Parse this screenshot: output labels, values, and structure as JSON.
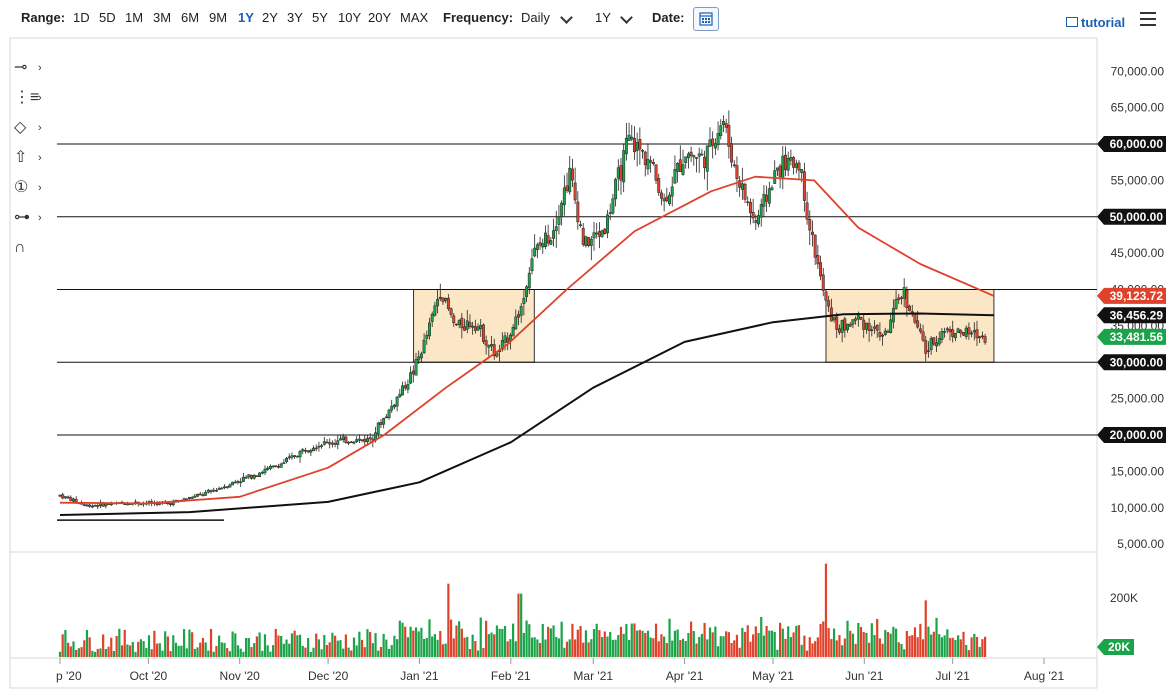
{
  "toolbar": {
    "range_label": "Range:",
    "ranges": [
      "1D",
      "5D",
      "1M",
      "3M",
      "6M",
      "9M",
      "1Y",
      "2Y",
      "3Y",
      "5Y",
      "10Y",
      "20Y",
      "MAX"
    ],
    "active_range": "1Y",
    "frequency_label": "Frequency:",
    "frequency_value": "Daily",
    "period_value": "1Y",
    "date_label": "Date:",
    "tutorial_label": "tutorial"
  },
  "tools": [
    {
      "name": "crosshair-tool",
      "glyph": "⊸"
    },
    {
      "name": "trend-line-tool",
      "glyph": "⋮≡"
    },
    {
      "name": "shape-tool",
      "glyph": "◇"
    },
    {
      "name": "arrow-tool",
      "glyph": "⇧"
    },
    {
      "name": "annotation-tool",
      "glyph": "①"
    },
    {
      "name": "fibonacci-tool",
      "glyph": "⊶"
    },
    {
      "name": "magnet-tool",
      "glyph": "∩"
    }
  ],
  "colors": {
    "up": "#1ba34a",
    "down": "#e0412a",
    "sma50": "#e0412a",
    "sma200": "#111111",
    "box_fill": "#fbe6c6",
    "box_stroke": "#333333"
  },
  "chart_data": {
    "type": "candlestick",
    "price_ticks": [
      "70,000.00",
      "65,000.00",
      "60,000.00",
      "55,000.00",
      "50,000.00",
      "45,000.00",
      "40,000.00",
      "35,000.00",
      "30,000.00",
      "25,000.00",
      "20,000.00",
      "15,000.00",
      "10,000.00",
      "5,000.00"
    ],
    "volume_ticks": [
      "200K",
      "20K"
    ],
    "x_labels": [
      "p '20",
      "Oct '20",
      "Nov '20",
      "Dec '20",
      "Jan '21",
      "Feb '21",
      "Mar '21",
      "Apr '21",
      "May '21",
      "Jun '21",
      "Jul '21",
      "Aug '21"
    ],
    "horizontal_levels": [
      60000,
      50000,
      40000,
      30000,
      20000
    ],
    "level_tags": [
      {
        "text": "60,000.00",
        "value": 60000,
        "style": "black"
      },
      {
        "text": "50,000.00",
        "value": 50000,
        "style": "black"
      },
      {
        "text": "39,123.72",
        "value": 39123.72,
        "style": "red"
      },
      {
        "text": "36,456.29",
        "value": 36456.29,
        "style": "black"
      },
      {
        "text": "33,481.56",
        "value": 33481.56,
        "style": "green"
      },
      {
        "text": "30,000.00",
        "value": 30000,
        "style": "black"
      },
      {
        "text": "20,000.00",
        "value": 20000,
        "style": "black"
      }
    ],
    "volume_tag": {
      "text": "20K",
      "style": "green"
    },
    "support_line": {
      "value": 8300
    },
    "range_boxes": [
      {
        "x0": "2020-12-30",
        "x1": "2021-02-09",
        "y0": 30000,
        "y1": 40000
      },
      {
        "x0": "2021-05-19",
        "x1": "2021-07-15",
        "y0": 30000,
        "y1": 40000
      }
    ],
    "close_path": [
      [
        "2020-09-01",
        11700
      ],
      [
        "2020-09-10",
        10300
      ],
      [
        "2020-09-25",
        10700
      ],
      [
        "2020-10-08",
        10600
      ],
      [
        "2020-10-20",
        11900
      ],
      [
        "2020-11-01",
        13800
      ],
      [
        "2020-11-15",
        16000
      ],
      [
        "2020-11-25",
        18500
      ],
      [
        "2020-12-05",
        19200
      ],
      [
        "2020-12-15",
        19400
      ],
      [
        "2020-12-22",
        23500
      ],
      [
        "2020-12-30",
        28800
      ],
      [
        "2021-01-03",
        33000
      ],
      [
        "2021-01-08",
        40000
      ],
      [
        "2021-01-13",
        35000
      ],
      [
        "2021-01-20",
        35500
      ],
      [
        "2021-01-27",
        30800
      ],
      [
        "2021-01-31",
        33500
      ],
      [
        "2021-02-05",
        38000
      ],
      [
        "2021-02-08",
        44500
      ],
      [
        "2021-02-15",
        48000
      ],
      [
        "2021-02-21",
        56000
      ],
      [
        "2021-02-26",
        46000
      ],
      [
        "2021-03-05",
        48500
      ],
      [
        "2021-03-13",
        60500
      ],
      [
        "2021-03-20",
        58000
      ],
      [
        "2021-03-25",
        52000
      ],
      [
        "2021-04-01",
        58800
      ],
      [
        "2021-04-08",
        58000
      ],
      [
        "2021-04-14",
        63500
      ],
      [
        "2021-04-18",
        56500
      ],
      [
        "2021-04-25",
        49000
      ],
      [
        "2021-05-03",
        57000
      ],
      [
        "2021-05-10",
        57500
      ],
      [
        "2021-05-13",
        49500
      ],
      [
        "2021-05-19",
        38000
      ],
      [
        "2021-05-23",
        34500
      ],
      [
        "2021-05-30",
        36000
      ],
      [
        "2021-06-08",
        33500
      ],
      [
        "2021-06-14",
        40000
      ],
      [
        "2021-06-22",
        31500
      ],
      [
        "2021-06-28",
        34500
      ],
      [
        "2021-07-05",
        34000
      ],
      [
        "2021-07-12",
        33481
      ]
    ],
    "sma50": [
      [
        "2020-09-01",
        10700
      ],
      [
        "2020-10-01",
        10600
      ],
      [
        "2020-11-01",
        11500
      ],
      [
        "2020-12-01",
        15500
      ],
      [
        "2020-12-20",
        20000
      ],
      [
        "2021-01-10",
        26500
      ],
      [
        "2021-01-31",
        32500
      ],
      [
        "2021-02-20",
        40000
      ],
      [
        "2021-03-15",
        48000
      ],
      [
        "2021-04-10",
        53500
      ],
      [
        "2021-04-25",
        55500
      ],
      [
        "2021-05-15",
        55000
      ],
      [
        "2021-05-30",
        48500
      ],
      [
        "2021-06-20",
        43500
      ],
      [
        "2021-07-15",
        39123.72
      ]
    ],
    "sma200": [
      [
        "2020-09-01",
        9000
      ],
      [
        "2020-10-15",
        9400
      ],
      [
        "2020-12-01",
        10800
      ],
      [
        "2021-01-01",
        13500
      ],
      [
        "2021-02-01",
        19000
      ],
      [
        "2021-03-01",
        26500
      ],
      [
        "2021-04-01",
        32800
      ],
      [
        "2021-05-01",
        35500
      ],
      [
        "2021-05-25",
        36600
      ],
      [
        "2021-06-20",
        36700
      ],
      [
        "2021-07-15",
        36456.29
      ]
    ],
    "volume": {
      "ymax": 300000,
      "spike_dates": [
        "2021-01-11",
        "2021-02-04",
        "2021-05-19",
        "2021-06-22"
      ],
      "spike_values": [
        220000,
        190000,
        280000,
        170000
      ]
    }
  }
}
